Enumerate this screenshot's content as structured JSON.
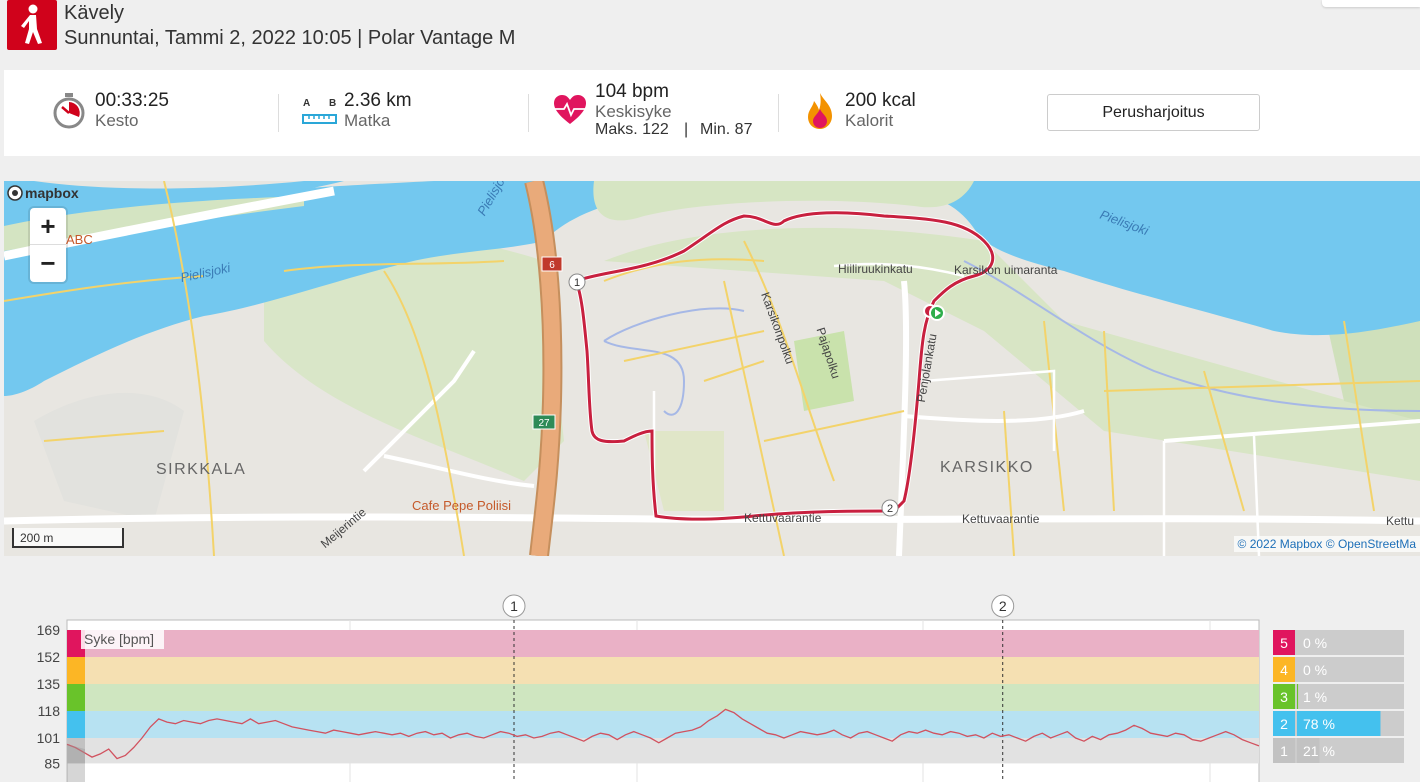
{
  "header": {
    "title": "Kävely",
    "subtitle": "Sunnuntai, Tammi 2, 2022 10:05 | Polar Vantage M",
    "sport_color": "#d0021b"
  },
  "summary": {
    "duration": {
      "value": "00:33:25",
      "label": "Kesto",
      "icon": "stopwatch-icon"
    },
    "distance": {
      "value": "2.36 km",
      "label": "Matka",
      "icon": "ruler-icon",
      "a": "A",
      "b": "B"
    },
    "heart_rate": {
      "value": "104 bpm",
      "label": "Keskisyke",
      "max": "Maks. 122",
      "sep": "|",
      "min": "Min. 87",
      "icon": "heart-icon"
    },
    "calories": {
      "value": "200 kcal",
      "label": "Kalorit",
      "icon": "flame-icon"
    },
    "type_button": "Perusharjoitus"
  },
  "map": {
    "logo": "mapbox",
    "zoom_in": "+",
    "zoom_out": "−",
    "scale": "200 m",
    "attribution_a": "© 2022 Mapbox",
    "attribution_b": "© OpenStreetMa",
    "labels": {
      "river1": "Pielisjoki",
      "river2": "Pielisjoki",
      "river3": "Pielisjoki",
      "street1": "Hiiliruukinkatu",
      "place1": "Karsikon uimaranta",
      "street2": "Karsikonpolku",
      "street3": "Pajapolku",
      "street4": "Penjolankatu",
      "street5": "Kettuvaarantie",
      "street6": "Kettuvaarantie",
      "street7": "Kettu",
      "street8": "Meijerintie",
      "district1": "SIRKKALA",
      "district2": "KARSIKKO",
      "poi1": "Cafe Pepe Poliisi",
      "poi2": "ABC",
      "road6": "6",
      "road27": "27",
      "lap1": "1",
      "lap2": "2"
    },
    "route_color": "#c8203f"
  },
  "chart_data": {
    "type": "line",
    "title": "Syke [bpm]",
    "y_ticks": [
      169,
      152,
      135,
      118,
      101,
      85
    ],
    "ylim": [
      85,
      169
    ],
    "lap_markers": [
      {
        "label": "1",
        "x_fraction": 0.375
      },
      {
        "label": "2",
        "x_fraction": 0.785
      }
    ],
    "zones": [
      {
        "zone": "5",
        "color": "#e0155e",
        "band": "#eab1c6",
        "from": 152,
        "to": 169,
        "percent": "0 %",
        "fill": 0
      },
      {
        "zone": "4",
        "color": "#fcb625",
        "band": "#f5e0b2",
        "from": 135,
        "to": 152,
        "percent": "0 %",
        "fill": 0
      },
      {
        "zone": "3",
        "color": "#69c32a",
        "band": "#cfe6c0",
        "from": 118,
        "to": 135,
        "percent": "1 %",
        "fill": 0.01
      },
      {
        "zone": "2",
        "color": "#44c1ee",
        "band": "#b7e2f2",
        "from": 101,
        "to": 118,
        "percent": "78 %",
        "fill": 0.78
      },
      {
        "zone": "1",
        "color": "#c2c2c2",
        "band": "#e2e2e2",
        "from": 85,
        "to": 101,
        "percent": "21 %",
        "fill": 0.21
      }
    ],
    "series": [
      {
        "values": [
          97,
          95,
          92,
          89,
          91,
          94,
          88,
          90,
          95,
          101,
          108,
          113,
          111,
          110,
          112,
          111,
          110,
          112,
          113,
          112,
          111,
          110,
          113,
          110,
          111,
          112,
          110,
          108,
          107,
          106,
          105,
          104,
          106,
          105,
          104,
          103,
          104,
          105,
          104,
          103,
          104,
          102,
          104,
          105,
          103,
          104,
          101,
          103,
          104,
          102,
          101,
          103,
          105,
          104,
          102,
          103,
          101,
          102,
          104,
          105,
          103,
          101,
          99,
          102,
          104,
          103,
          100,
          103,
          105,
          103,
          101,
          98,
          101,
          104,
          105,
          106,
          108,
          112,
          115,
          119,
          117,
          113,
          110,
          107,
          104,
          103,
          101,
          103,
          105,
          104,
          103,
          104,
          106,
          103,
          101,
          104,
          105,
          103,
          101,
          99,
          103,
          105,
          104,
          106,
          104,
          103,
          105,
          104,
          102,
          103,
          101,
          104,
          102,
          103,
          101,
          99,
          102,
          104,
          101,
          103,
          105,
          101,
          99,
          102,
          100,
          103,
          104,
          106,
          109,
          107,
          104,
          103,
          102,
          104,
          103,
          100,
          99,
          101,
          103,
          105,
          103,
          100,
          98,
          96
        ]
      }
    ],
    "line_color": "#d1525f"
  }
}
